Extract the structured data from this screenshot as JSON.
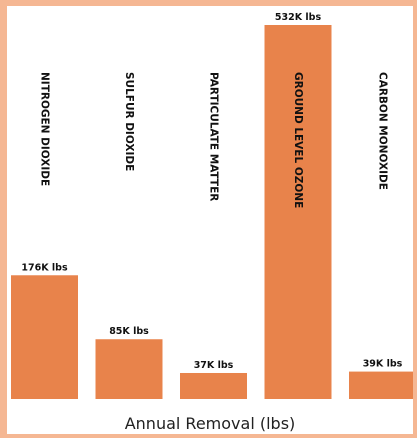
{
  "chart_data": {
    "type": "bar",
    "categories": [
      "NITROGEN DIOXIDE",
      "SULFUR DIOXIDE",
      "PARTICULATE MATTER",
      "GROUND LEVEL OZONE",
      "CARBON MONOXIDE"
    ],
    "values": [
      176,
      85,
      37,
      532,
      39
    ],
    "value_labels": [
      "176K lbs",
      "85K lbs",
      "37K lbs",
      "532K lbs",
      "39K lbs"
    ],
    "xlabel": "Annual Removal (lbs)",
    "ylabel": "",
    "ylim": [
      0,
      532
    ],
    "grid": false,
    "bar_color": "#e8834b",
    "background_color": "#ffffff",
    "frame_color": "#f5b793"
  }
}
